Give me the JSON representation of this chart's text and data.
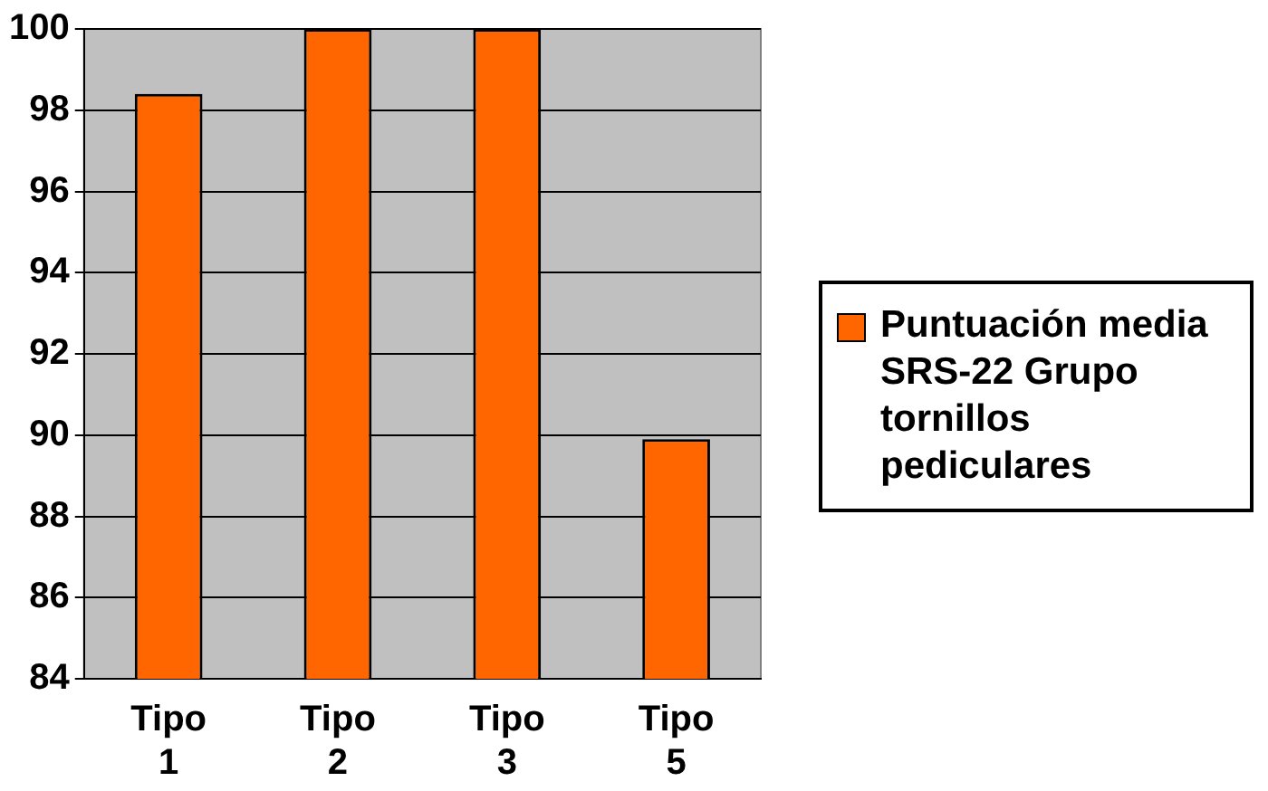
{
  "chart_data": {
    "type": "bar",
    "categories": [
      "Tipo 1",
      "Tipo 2",
      "Tipo 3",
      "Tipo 5"
    ],
    "series": [
      {
        "name": "Puntuación media SRS-22 Grupo tornillos pediculares",
        "color": "#ff6600",
        "values": [
          98.4,
          100,
          100,
          89.9
        ]
      }
    ],
    "ylim": [
      84,
      100
    ],
    "yticks": [
      84,
      86,
      88,
      90,
      92,
      94,
      96,
      98,
      100
    ],
    "grid": "y",
    "legend": "right"
  }
}
